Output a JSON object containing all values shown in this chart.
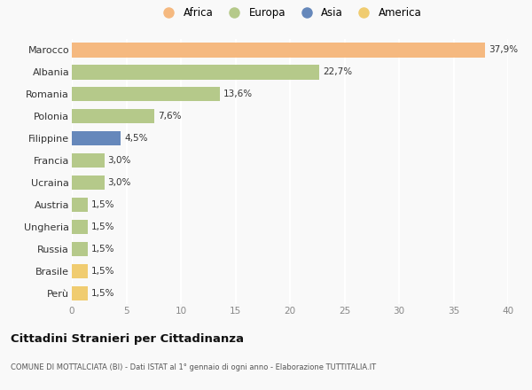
{
  "countries": [
    "Marocco",
    "Albania",
    "Romania",
    "Polonia",
    "Filippine",
    "Francia",
    "Ucraina",
    "Austria",
    "Ungheria",
    "Russia",
    "Brasile",
    "Perù"
  ],
  "values": [
    37.9,
    22.7,
    13.6,
    7.6,
    4.5,
    3.0,
    3.0,
    1.5,
    1.5,
    1.5,
    1.5,
    1.5
  ],
  "labels": [
    "37,9%",
    "22,7%",
    "13,6%",
    "7,6%",
    "4,5%",
    "3,0%",
    "3,0%",
    "1,5%",
    "1,5%",
    "1,5%",
    "1,5%",
    "1,5%"
  ],
  "colors": [
    "#F5B980",
    "#B5C98A",
    "#B5C98A",
    "#B5C98A",
    "#6688BB",
    "#B5C98A",
    "#B5C98A",
    "#B5C98A",
    "#B5C98A",
    "#B5C98A",
    "#F0CC70",
    "#F0CC70"
  ],
  "legend_labels": [
    "Africa",
    "Europa",
    "Asia",
    "America"
  ],
  "legend_colors": [
    "#F5B980",
    "#B5C98A",
    "#6688BB",
    "#F0CC70"
  ],
  "title": "Cittadini Stranieri per Cittadinanza",
  "subtitle": "COMUNE DI MOTTALCIATA (BI) - Dati ISTAT al 1° gennaio di ogni anno - Elaborazione TUTTITALIA.IT",
  "xlim": [
    0,
    40
  ],
  "xticks": [
    0,
    5,
    10,
    15,
    20,
    25,
    30,
    35,
    40
  ],
  "background_color": "#f9f9f9",
  "grid_color": "#ffffff",
  "bar_height": 0.65
}
